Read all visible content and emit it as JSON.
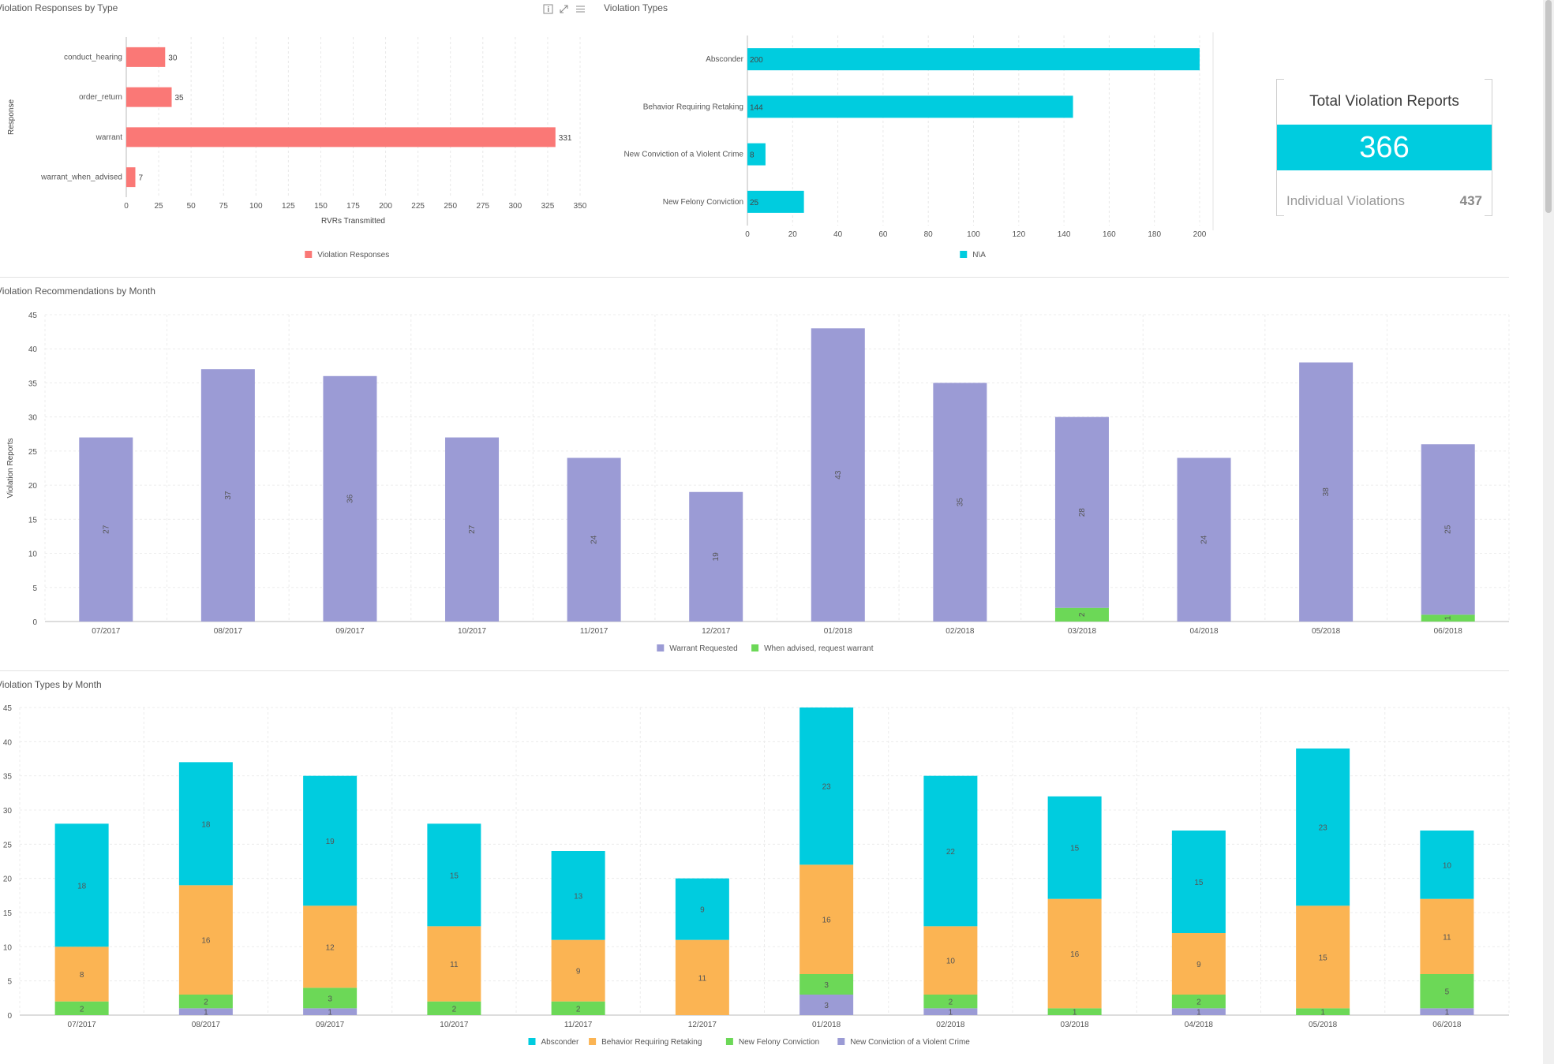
{
  "panels": {
    "responses_by_type": {
      "title": "Violation Responses by Type"
    },
    "violation_types": {
      "title": "Violation Types"
    },
    "recommendations_by_month": {
      "title": "Violation Recommendations by Month"
    },
    "types_by_month": {
      "title": "Violation Types by Month"
    }
  },
  "kpi": {
    "title": "Total Violation Reports",
    "value": "366",
    "sub_label": "Individual Violations",
    "sub_value": "437"
  },
  "colors": {
    "salmon": "#fa7876",
    "cyan": "#00ccdf",
    "purple": "#9b9bd5",
    "green": "#6cd857",
    "orange": "#fbb453"
  },
  "chart_data": [
    {
      "id": "responses",
      "type": "bar",
      "orientation": "horizontal",
      "categories": [
        "conduct_hearing",
        "order_return",
        "warrant",
        "warrant_when_advised"
      ],
      "series": [
        {
          "name": "Violation Responses",
          "values": [
            30,
            35,
            331,
            7
          ],
          "color": "#fa7876"
        }
      ],
      "xlabel": "RVRs Transmitted",
      "ylabel": "Response",
      "xlim": [
        0,
        350
      ],
      "xticks": [
        0,
        25,
        50,
        75,
        100,
        125,
        150,
        175,
        200,
        225,
        250,
        275,
        300,
        325,
        350
      ],
      "grid": true,
      "legend": "bottom",
      "data_labels": true
    },
    {
      "id": "types",
      "type": "bar",
      "orientation": "horizontal",
      "categories": [
        "Absconder",
        "Behavior Requiring Retaking",
        "New Conviction of a Violent Crime",
        "New Felony Conviction"
      ],
      "series": [
        {
          "name": "N\\A",
          "values": [
            200,
            144,
            8,
            25
          ],
          "color": "#00ccdf"
        }
      ],
      "xlim": [
        0,
        200
      ],
      "xticks": [
        0,
        20,
        40,
        60,
        80,
        100,
        120,
        140,
        160,
        180,
        200
      ],
      "grid": true,
      "legend": "bottom",
      "data_labels": true
    },
    {
      "id": "recommendations",
      "type": "bar",
      "stacked": true,
      "categories": [
        "07/2017",
        "08/2017",
        "09/2017",
        "10/2017",
        "11/2017",
        "12/2017",
        "01/2018",
        "02/2018",
        "03/2018",
        "04/2018",
        "05/2018",
        "06/2018"
      ],
      "series": [
        {
          "name": "When advised, request warrant",
          "values": [
            0,
            0,
            0,
            0,
            0,
            0,
            0,
            0,
            2,
            0,
            0,
            1
          ],
          "color": "#6cd857"
        },
        {
          "name": "Warrant Requested",
          "values": [
            27,
            37,
            36,
            27,
            24,
            19,
            43,
            35,
            28,
            24,
            38,
            25
          ],
          "color": "#9b9bd5"
        }
      ],
      "legend_order": [
        "Warrant Requested",
        "When advised, request warrant"
      ],
      "ylabel": "Violation Reports",
      "ylim": [
        0,
        45
      ],
      "yticks": [
        0,
        5,
        10,
        15,
        20,
        25,
        30,
        35,
        40,
        45
      ],
      "grid": true,
      "legend": "bottom",
      "data_labels": true,
      "label_rotation": -90
    },
    {
      "id": "types_month",
      "type": "bar",
      "stacked": true,
      "categories": [
        "07/2017",
        "08/2017",
        "09/2017",
        "10/2017",
        "11/2017",
        "12/2017",
        "01/2018",
        "02/2018",
        "03/2018",
        "04/2018",
        "05/2018",
        "06/2018"
      ],
      "series": [
        {
          "name": "New Conviction of a Violent Crime",
          "values": [
            0,
            1,
            1,
            0,
            0,
            0,
            3,
            1,
            0,
            1,
            0,
            1
          ],
          "color": "#9b9bd5"
        },
        {
          "name": "New Felony Conviction",
          "values": [
            2,
            2,
            3,
            2,
            2,
            0,
            3,
            2,
            1,
            2,
            1,
            5
          ],
          "color": "#6cd857"
        },
        {
          "name": "Behavior Requiring Retaking",
          "values": [
            8,
            16,
            12,
            11,
            9,
            11,
            16,
            10,
            16,
            9,
            15,
            11
          ],
          "color": "#fbb453"
        },
        {
          "name": "Absconder",
          "values": [
            18,
            18,
            19,
            15,
            13,
            9,
            23,
            22,
            15,
            15,
            23,
            10
          ],
          "color": "#00ccdf"
        }
      ],
      "legend_order": [
        "Absconder",
        "Behavior Requiring Retaking",
        "New Felony Conviction",
        "New Conviction of a Violent Crime"
      ],
      "ylim": [
        0,
        45
      ],
      "yticks": [
        0,
        5,
        10,
        15,
        20,
        25,
        30,
        35,
        40,
        45
      ],
      "grid": true,
      "legend": "bottom",
      "data_labels": true
    }
  ]
}
